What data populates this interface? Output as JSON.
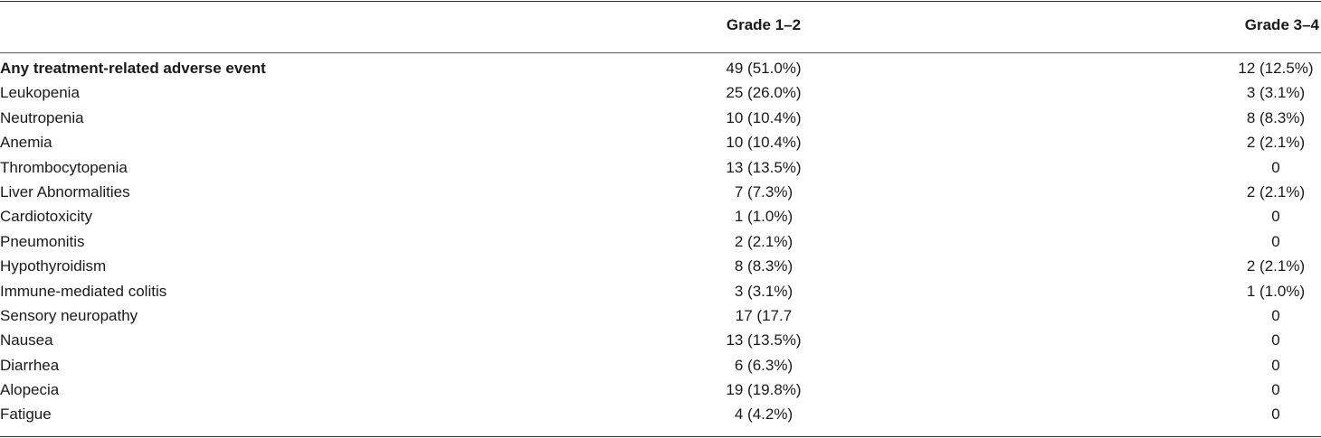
{
  "table": {
    "headers": {
      "event": "",
      "grade_1_2": "Grade 1–2",
      "grade_3_4": "Grade 3–4"
    },
    "rows": [
      {
        "event": "Any treatment-related adverse event",
        "grade_1_2": "49 (51.0%)",
        "grade_3_4": "12 (12.5%)"
      },
      {
        "event": "Leukopenia",
        "grade_1_2": "25 (26.0%)",
        "grade_3_4": "3 (3.1%)"
      },
      {
        "event": "Neutropenia",
        "grade_1_2": "10 (10.4%)",
        "grade_3_4": "8 (8.3%)"
      },
      {
        "event": "Anemia",
        "grade_1_2": "10 (10.4%)",
        "grade_3_4": "2 (2.1%)"
      },
      {
        "event": "Thrombocytopenia",
        "grade_1_2": "13 (13.5%)",
        "grade_3_4": "0"
      },
      {
        "event": "Liver Abnormalities",
        "grade_1_2": "7 (7.3%)",
        "grade_3_4": "2 (2.1%)"
      },
      {
        "event": "Cardiotoxicity",
        "grade_1_2": "1 (1.0%)",
        "grade_3_4": "0"
      },
      {
        "event": "Pneumonitis",
        "grade_1_2": "2 (2.1%)",
        "grade_3_4": "0"
      },
      {
        "event": "Hypothyroidism",
        "grade_1_2": "8 (8.3%)",
        "grade_3_4": "2 (2.1%)"
      },
      {
        "event": "Immune-mediated colitis",
        "grade_1_2": "3 (3.1%)",
        "grade_3_4": "1 (1.0%)"
      },
      {
        "event": "Sensory neuropathy",
        "grade_1_2": "17 (17.7",
        "grade_3_4": "0"
      },
      {
        "event": "Nausea",
        "grade_1_2": "13 (13.5%)",
        "grade_3_4": "0"
      },
      {
        "event": "Diarrhea",
        "grade_1_2": "6 (6.3%)",
        "grade_3_4": "0"
      },
      {
        "event": "Alopecia",
        "grade_1_2": "19 (19.8%)",
        "grade_3_4": "0"
      },
      {
        "event": "Fatigue",
        "grade_1_2": "4 (4.2%)",
        "grade_3_4": "0"
      }
    ]
  }
}
